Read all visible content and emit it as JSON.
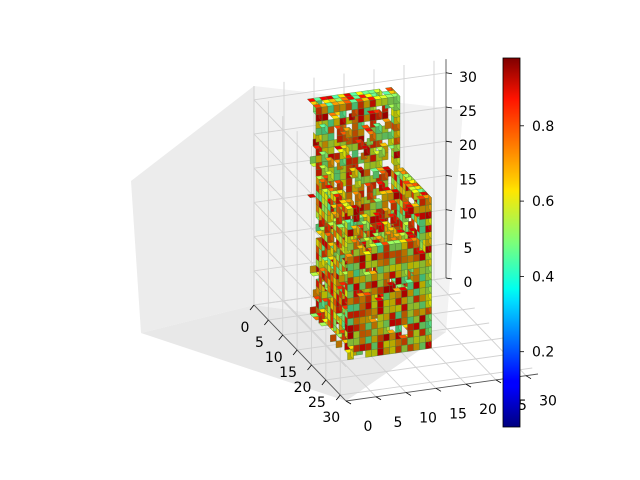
{
  "chart_data": {
    "type": "voxel3d",
    "title": "",
    "xlabel": "",
    "ylabel": "",
    "zlabel": "",
    "x_ticks": [
      "0",
      "5",
      "10",
      "15",
      "20",
      "25",
      "30"
    ],
    "y_ticks": [
      "0",
      "5",
      "10",
      "15",
      "20",
      "25",
      "30"
    ],
    "z_ticks": [
      "0",
      "5",
      "10",
      "15",
      "20",
      "25",
      "30"
    ],
    "xlim": [
      0,
      32
    ],
    "ylim": [
      0,
      32
    ],
    "zlim": [
      0,
      32
    ],
    "grid": true,
    "colormap": "jet",
    "colorbar": {
      "ticks": [
        "0.2",
        "0.4",
        "0.6",
        "0.8"
      ],
      "tick_values": [
        0.2,
        0.4,
        0.6,
        0.8
      ],
      "range": [
        0.0,
        0.98
      ]
    },
    "voxel_value_range": [
      0.45,
      0.9
    ],
    "object_extent": {
      "x": [
        6,
        20
      ],
      "y": [
        6,
        20
      ],
      "z": [
        0,
        32
      ]
    },
    "colors": {
      "edge": "#4a7a3a",
      "pane": "#f2f2f2",
      "grid": "#d2d2d2"
    }
  }
}
